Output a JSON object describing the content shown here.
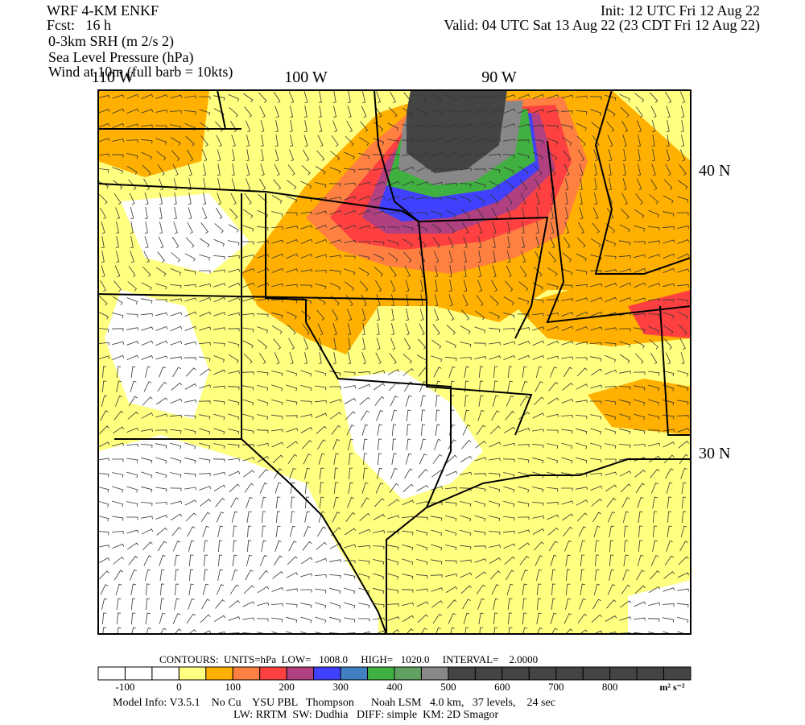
{
  "header": {
    "model": "WRF 4-KM ENKF",
    "forecast": "Fcst:   16 h",
    "init": "Init: 12 UTC Fri 12 Aug 22",
    "valid": "Valid: 04 UTC Sat 13 Aug 22 (23 CDT Fri 12 Aug 22)",
    "fields": [
      "0-3km SRH (m 2/s 2)",
      "Sea Level Pressure (hPa)",
      "Wind at 10m (full barb = 10kts)"
    ]
  },
  "map": {
    "lon_labels": [
      "110 W",
      "100 W",
      "90 W"
    ],
    "lat_labels": [
      "40 N",
      "30 N"
    ]
  },
  "contours": "CONTOURS:  UNITS=hPa  LOW=   1008.0     HIGH=   1020.0     INTERVAL=    2.0000",
  "colorbar": {
    "ticks": [
      -100,
      0,
      100,
      200,
      300,
      400,
      500,
      600,
      700,
      800
    ],
    "units": "m² s⁻²",
    "colors": [
      "#ffffff",
      "#ffffff",
      "#ffffff",
      "#ffff80",
      "#ffb000",
      "#ff8040",
      "#ff4040",
      "#b04080",
      "#4040ff",
      "#4080c0",
      "#40b040",
      "#60a060",
      "#888888",
      "#444444",
      "#444444",
      "#444444",
      "#444444",
      "#444444",
      "#444444",
      "#444444",
      "#444444",
      "#444444"
    ]
  },
  "footer": [
    "Model Info: V3.5.1    No Cu    YSU PBL   Thompson      Noah LSM   4.0 km,   37 levels,    24 sec",
    "LW: RRTM  SW: Dudhia   DIFF: simple  KM: 2D Smagor"
  ]
}
